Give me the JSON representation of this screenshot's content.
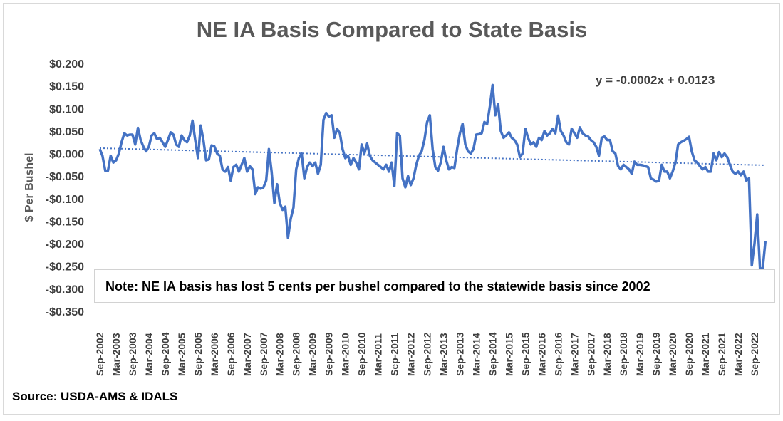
{
  "chart_data": {
    "type": "line",
    "title": "NE IA Basis Compared to State Basis",
    "y_label": "$ Per Bushel",
    "equation": "y = -0.0002x + 0.0123",
    "note": "Note: NE IA basis has lost 5 cents per bushel compared to the statewide basis since 2002",
    "source": "Source: USDA-AMS & IDALS",
    "color": "#4472c4",
    "ylim": [
      -0.35,
      0.2
    ],
    "yticks": [
      {
        "value": 0.2,
        "label": "$0.200"
      },
      {
        "value": 0.15,
        "label": "$0.150"
      },
      {
        "value": 0.1,
        "label": "$0.100"
      },
      {
        "value": 0.05,
        "label": "$0.050"
      },
      {
        "value": 0,
        "label": "$0.000"
      },
      {
        "value": -0.05,
        "label": "-$0.050"
      },
      {
        "value": -0.1,
        "label": "-$0.100"
      },
      {
        "value": -0.15,
        "label": "-$0.150"
      },
      {
        "value": -0.2,
        "label": "-$0.200"
      },
      {
        "value": -0.25,
        "label": "-$0.250"
      },
      {
        "value": -0.3,
        "label": "-$0.300"
      },
      {
        "value": -0.35,
        "label": "-$0.350"
      }
    ],
    "tick_labels": [
      "Sep-2002",
      "Mar-2003",
      "Sep-2003",
      "Mar-2004",
      "Sep-2004",
      "Mar-2005",
      "Sep-2005",
      "Mar-2006",
      "Sep-2006",
      "Mar-2007",
      "Sep-2007",
      "Mar-2008",
      "Sep-2008",
      "Mar-2009",
      "Sep-2009",
      "Mar-2010",
      "Sep-2010",
      "Mar-2011",
      "Sep-2011",
      "Mar-2012",
      "Sep-2012",
      "Mar-2013",
      "Sep-2013",
      "Mar-2014",
      "Sep-2014",
      "Mar-2015",
      "Sep-2015",
      "Mar-2016",
      "Sep-2016",
      "Mar-2017",
      "Sep-2017",
      "Mar-2018",
      "Sep-2018",
      "Mar-2019",
      "Sep-2019",
      "Mar-2020",
      "Sep-2020",
      "Mar-2021",
      "Sep-2021",
      "Mar-2022",
      "Sep-2022"
    ],
    "values": [
      0.01,
      -0.005,
      -0.038,
      -0.038,
      -0.005,
      -0.02,
      -0.015,
      0.0,
      0.025,
      0.045,
      0.04,
      0.042,
      0.042,
      0.02,
      0.057,
      0.03,
      0.015,
      0.005,
      0.015,
      0.04,
      0.045,
      0.032,
      0.035,
      0.025,
      0.015,
      0.03,
      0.047,
      0.042,
      0.02,
      0.015,
      0.04,
      0.03,
      0.025,
      0.04,
      0.073,
      0.03,
      -0.01,
      0.062,
      0.03,
      -0.015,
      -0.013,
      0.018,
      0.016,
      0.0,
      -0.005,
      -0.035,
      -0.04,
      -0.03,
      -0.06,
      -0.03,
      -0.025,
      -0.04,
      -0.025,
      -0.01,
      -0.04,
      -0.028,
      -0.035,
      -0.09,
      -0.075,
      -0.078,
      -0.075,
      -0.06,
      0.01,
      -0.04,
      -0.11,
      -0.068,
      -0.11,
      -0.125,
      -0.118,
      -0.187,
      -0.145,
      -0.12,
      -0.035,
      -0.01,
      0.0,
      -0.055,
      -0.03,
      -0.02,
      -0.028,
      -0.02,
      -0.045,
      -0.025,
      0.075,
      0.09,
      0.082,
      0.085,
      0.035,
      0.055,
      0.045,
      0.01,
      -0.01,
      -0.005,
      -0.025,
      -0.01,
      -0.02,
      -0.035,
      0.02,
      0.0,
      0.022,
      -0.005,
      -0.015,
      -0.02,
      -0.025,
      -0.03,
      -0.035,
      -0.025,
      -0.04,
      -0.02,
      -0.072,
      0.045,
      0.04,
      -0.055,
      -0.075,
      -0.05,
      -0.07,
      -0.055,
      -0.025,
      -0.005,
      0.005,
      0.03,
      0.07,
      0.085,
      0.01,
      -0.03,
      -0.038,
      -0.02,
      0.015,
      -0.015,
      -0.035,
      -0.03,
      -0.032,
      0.01,
      0.045,
      0.066,
      0.02,
      0.005,
      0.0,
      0.01,
      0.042,
      0.043,
      0.045,
      0.07,
      0.065,
      0.105,
      0.152,
      0.085,
      0.11,
      0.05,
      0.035,
      0.04,
      0.047,
      0.035,
      0.03,
      0.02,
      -0.008,
      0.0,
      0.055,
      0.035,
      0.02,
      0.025,
      0.015,
      0.035,
      0.03,
      0.05,
      0.04,
      0.045,
      0.055,
      0.045,
      0.084,
      0.05,
      0.04,
      0.025,
      0.02,
      0.055,
      0.045,
      0.035,
      0.058,
      0.045,
      0.04,
      0.038,
      0.03,
      0.025,
      0.015,
      -0.005,
      0.035,
      0.038,
      0.03,
      0.03,
      0.005,
      0.0,
      -0.028,
      -0.035,
      -0.025,
      -0.03,
      -0.035,
      -0.045,
      -0.018,
      -0.025,
      -0.025,
      -0.026,
      -0.028,
      -0.03,
      -0.055,
      -0.058,
      -0.062,
      -0.06,
      -0.025,
      -0.04,
      -0.04,
      -0.055,
      -0.04,
      -0.02,
      0.02,
      0.025,
      0.028,
      0.032,
      0.037,
      0.005,
      -0.015,
      -0.02,
      -0.028,
      -0.035,
      -0.03,
      -0.04,
      -0.04,
      0.0,
      -0.015,
      0.003,
      -0.008,
      0.0,
      -0.008,
      -0.025,
      -0.04,
      -0.045,
      -0.04,
      -0.048,
      -0.04,
      -0.06,
      -0.055,
      -0.248,
      -0.2,
      -0.135,
      -0.255,
      -0.255,
      -0.195
    ],
    "trendline": {
      "values": [
        0.012,
        -0.026
      ]
    }
  }
}
